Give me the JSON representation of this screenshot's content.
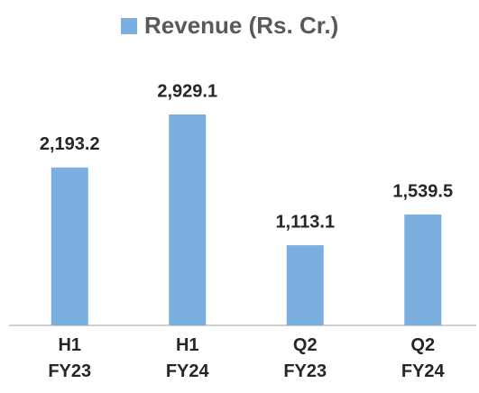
{
  "chart_data": {
    "type": "bar",
    "legend": "Revenue (Rs. Cr.)",
    "categories": [
      "H1 FY23",
      "H1 FY24",
      "Q2 FY23",
      "Q2 FY24"
    ],
    "values": [
      2193.2,
      2929.1,
      1113.1,
      1539.5
    ],
    "value_labels": [
      "2,193.2",
      "2,929.1",
      "1,113.1",
      "1,539.5"
    ],
    "color": "#7aafe0"
  }
}
